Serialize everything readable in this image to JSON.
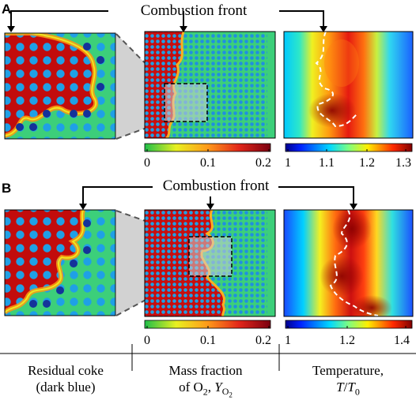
{
  "panels": [
    {
      "letter": "A",
      "front_label": "Combustion front",
      "o2_ticks": [
        "0",
        "0.1",
        "0.2"
      ],
      "temp_ticks": [
        "1",
        "1.1",
        "1.2",
        "1.3"
      ]
    },
    {
      "letter": "B",
      "front_label": "Combustion front",
      "o2_ticks": [
        "0",
        "0.1",
        "0.2"
      ],
      "temp_ticks": [
        "1",
        "1.2",
        "1.4"
      ]
    }
  ],
  "captions": {
    "coke": [
      "Residual coke",
      "(dark blue)"
    ],
    "o2_line1": "Mass fraction",
    "o2_line2_prefix": "of O",
    "o2_sub": "2",
    "o2_sep": ", ",
    "o2_var": "Y",
    "o2_var_sub": "O",
    "o2_var_subsub": "2",
    "temp_line1": "Temperature,",
    "temp_T": "T",
    "temp_slash": "/",
    "temp_T0": "T",
    "temp_T0_sub": "0"
  },
  "colors": {
    "fluid_green": "#3ccf7a",
    "grain_blue": "#1fa0e6",
    "coke_dark_blue": "#14339a",
    "front_red": "#c80d0d",
    "front_orange": "#ff7a10",
    "zoom_gray": "#d2d2d2"
  }
}
